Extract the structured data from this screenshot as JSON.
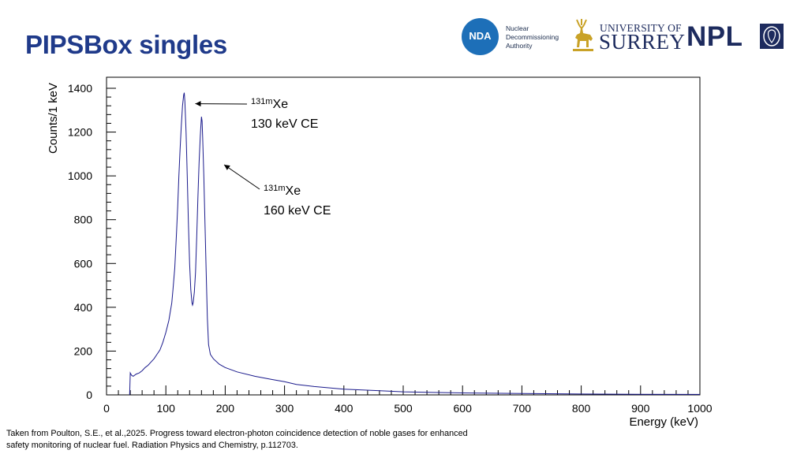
{
  "slide": {
    "title": "PIPSBox singles",
    "caption_line1": "Taken from Poulton, S.E., et al.,2025. Progress toward electron-photon coincidence detection of noble gases for enhanced",
    "caption_line2": "safety monitoring of nuclear fuel. Radiation Physics and Chemistry, p.112703."
  },
  "logos": {
    "nda_mark": "NDA",
    "nda_line1": "Nuclear",
    "nda_line2": "Decommissioning",
    "nda_line3": "Authority",
    "surrey_line1": "UNIVERSITY OF",
    "surrey_line2": "SURREY",
    "npl": "NPL",
    "colors": {
      "nda_blue": "#1d6fb8",
      "surrey_navy": "#1d2b5e",
      "stag_gold": "#c9a227"
    }
  },
  "chart_data": {
    "type": "line",
    "title": "",
    "xlabel": "Energy (keV)",
    "ylabel": "Counts/1 keV",
    "xlim": [
      0,
      1000
    ],
    "ylim": [
      0,
      1400
    ],
    "x_ticks": [
      0,
      100,
      200,
      300,
      400,
      500,
      600,
      700,
      800,
      900,
      1000
    ],
    "y_ticks": [
      0,
      200,
      400,
      600,
      800,
      1000,
      1200,
      1400
    ],
    "line_color": "#1a1a8c",
    "grid": false,
    "series": [
      {
        "x": [
          39,
          40,
          42,
          45,
          50,
          55,
          60,
          65,
          70,
          75,
          80,
          85,
          90,
          95,
          100,
          105,
          110,
          112,
          115,
          118,
          120,
          122,
          124,
          126,
          128,
          130,
          131,
          132,
          134,
          136,
          138,
          140,
          142,
          144,
          145,
          146,
          148,
          150,
          152,
          154,
          156,
          158,
          159,
          160,
          161,
          162,
          164,
          166,
          168,
          170,
          172,
          175,
          180,
          190,
          200,
          220,
          250,
          280,
          300,
          320,
          350,
          400,
          450,
          500,
          550,
          600,
          700,
          800,
          900,
          1000
        ],
        "y": [
          0,
          100,
          90,
          85,
          95,
          100,
          110,
          125,
          135,
          150,
          165,
          185,
          205,
          240,
          285,
          340,
          420,
          480,
          580,
          740,
          860,
          1000,
          1120,
          1230,
          1320,
          1370,
          1380,
          1340,
          1200,
          1000,
          780,
          600,
          480,
          420,
          410,
          420,
          470,
          560,
          720,
          900,
          1060,
          1180,
          1230,
          1270,
          1250,
          1180,
          1000,
          780,
          560,
          350,
          230,
          185,
          165,
          140,
          125,
          105,
          85,
          70,
          60,
          48,
          38,
          26,
          20,
          14,
          11,
          9,
          6,
          4,
          3,
          2
        ]
      }
    ],
    "annotations": [
      {
        "superscript": "131m",
        "symbol": "Xe",
        "text": "130 keV CE",
        "peak_x": 131,
        "peak_y": 1380
      },
      {
        "superscript": "131m",
        "symbol": "Xe",
        "text": "160 keV CE",
        "peak_x": 161,
        "peak_y": 1270
      }
    ]
  }
}
